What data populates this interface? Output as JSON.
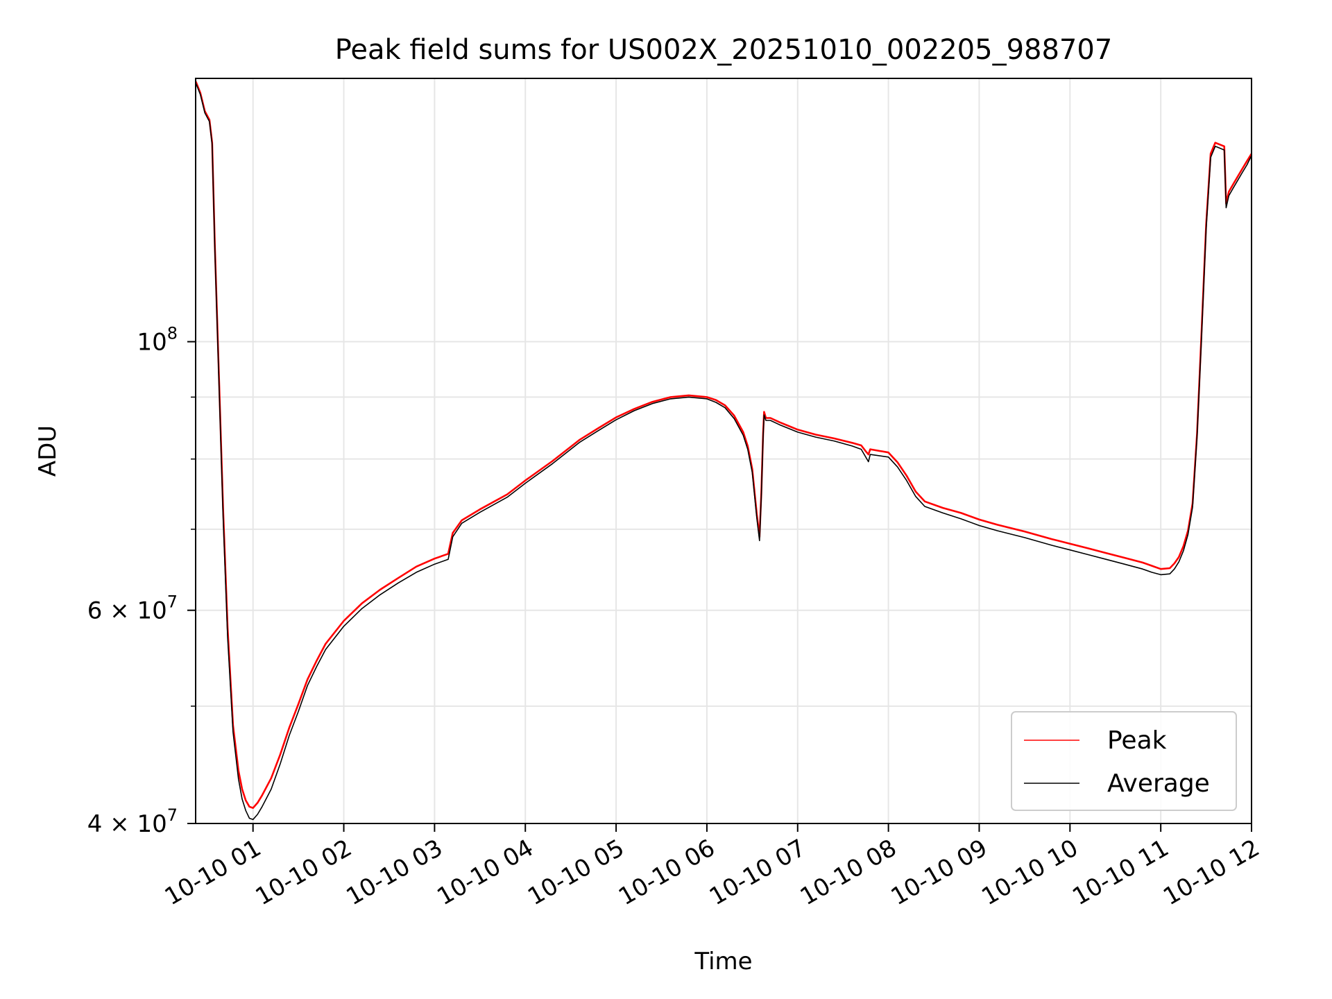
{
  "chart_data": {
    "type": "line",
    "title": "Peak field sums for US002X_20251010_002205_988707",
    "xlabel": "Time",
    "ylabel": "ADU",
    "yscale": "log",
    "xlim_hours": [
      0.368,
      12.0
    ],
    "ylim": [
      40000000,
      165000000
    ],
    "grid": true,
    "legend_location": "lower right",
    "x_ticks": [
      {
        "hour": 1,
        "label": "10-10 01"
      },
      {
        "hour": 2,
        "label": "10-10 02"
      },
      {
        "hour": 3,
        "label": "10-10 03"
      },
      {
        "hour": 4,
        "label": "10-10 04"
      },
      {
        "hour": 5,
        "label": "10-10 05"
      },
      {
        "hour": 6,
        "label": "10-10 06"
      },
      {
        "hour": 7,
        "label": "10-10 07"
      },
      {
        "hour": 8,
        "label": "10-10 08"
      },
      {
        "hour": 9,
        "label": "10-10 09"
      },
      {
        "hour": 10,
        "label": "10-10 10"
      },
      {
        "hour": 11,
        "label": "10-10 11"
      },
      {
        "hour": 12,
        "label": "10-10 12"
      }
    ],
    "y_major_ticks": [
      {
        "value": 40000000,
        "base": "4 × 10",
        "exp": "7"
      },
      {
        "value": 60000000,
        "base": "6 × 10",
        "exp": "7"
      },
      {
        "value": 100000000,
        "base": "10",
        "exp": "8"
      }
    ],
    "y_minor_ticks": [
      50000000,
      70000000,
      80000000,
      90000000
    ],
    "series": [
      {
        "name": "Peak",
        "color": "#ff0000",
        "x_hours": [
          0.37,
          0.42,
          0.47,
          0.52,
          0.55,
          0.58,
          0.62,
          0.67,
          0.72,
          0.78,
          0.84,
          0.88,
          0.92,
          0.96,
          1.0,
          1.05,
          1.1,
          1.2,
          1.3,
          1.4,
          1.5,
          1.6,
          1.7,
          1.8,
          2.0,
          2.2,
          2.4,
          2.6,
          2.8,
          3.0,
          3.15,
          3.2,
          3.3,
          3.5,
          3.8,
          4.0,
          4.3,
          4.6,
          4.8,
          5.0,
          5.2,
          5.4,
          5.6,
          5.8,
          6.0,
          6.1,
          6.2,
          6.3,
          6.4,
          6.45,
          6.5,
          6.55,
          6.58,
          6.6,
          6.62,
          6.63,
          6.65,
          6.7,
          6.8,
          7.0,
          7.2,
          7.4,
          7.6,
          7.7,
          7.75,
          7.78,
          7.8,
          8.0,
          8.1,
          8.2,
          8.3,
          8.4,
          8.6,
          8.8,
          9.0,
          9.2,
          9.5,
          9.8,
          10.0,
          10.2,
          10.4,
          10.6,
          10.8,
          10.9,
          11.0,
          11.1,
          11.15,
          11.2,
          11.25,
          11.3,
          11.35,
          11.4,
          11.45,
          11.5,
          11.55,
          11.6,
          11.65,
          11.7,
          11.72,
          11.75,
          11.8,
          11.9,
          11.95,
          12.0
        ],
        "values": [
          164000000,
          160500000,
          155000000,
          152500000,
          146000000,
          120000000,
          96000000,
          73000000,
          58000000,
          48200000,
          44200000,
          42700000,
          41800000,
          41300000,
          41200000,
          41600000,
          42200000,
          43600000,
          45600000,
          48000000,
          50200000,
          52600000,
          54500000,
          56300000,
          58800000,
          60800000,
          62400000,
          63800000,
          65200000,
          66200000,
          66800000,
          69500000,
          71200000,
          72700000,
          74800000,
          76800000,
          79700000,
          83000000,
          84800000,
          86600000,
          88000000,
          89200000,
          90000000,
          90300000,
          90000000,
          89500000,
          88600000,
          86900000,
          84200000,
          82000000,
          78500000,
          72000000,
          69000000,
          75000000,
          84000000,
          87500000,
          86500000,
          86500000,
          85800000,
          84600000,
          83800000,
          83200000,
          82500000,
          82100000,
          81200000,
          80700000,
          81500000,
          81000000,
          79500000,
          77500000,
          75200000,
          73800000,
          72900000,
          72200000,
          71300000,
          70600000,
          69700000,
          68700000,
          68100000,
          67500000,
          66900000,
          66300000,
          65700000,
          65300000,
          64900000,
          65000000,
          65600000,
          66400000,
          67800000,
          69800000,
          73500000,
          84000000,
          102000000,
          125000000,
          143000000,
          146000000,
          145500000,
          145000000,
          130000000,
          133000000,
          135000000,
          139000000,
          141000000,
          143000000
        ]
      },
      {
        "name": "Average",
        "color": "#000000",
        "x_hours": [
          0.37,
          0.42,
          0.47,
          0.52,
          0.55,
          0.58,
          0.62,
          0.67,
          0.72,
          0.78,
          0.84,
          0.88,
          0.92,
          0.96,
          1.0,
          1.05,
          1.1,
          1.2,
          1.3,
          1.4,
          1.5,
          1.6,
          1.7,
          1.8,
          2.0,
          2.2,
          2.4,
          2.6,
          2.8,
          3.0,
          3.15,
          3.2,
          3.3,
          3.5,
          3.8,
          4.0,
          4.3,
          4.6,
          4.8,
          5.0,
          5.2,
          5.4,
          5.6,
          5.8,
          6.0,
          6.1,
          6.2,
          6.3,
          6.4,
          6.45,
          6.5,
          6.55,
          6.58,
          6.6,
          6.62,
          6.63,
          6.65,
          6.7,
          6.8,
          7.0,
          7.2,
          7.4,
          7.6,
          7.7,
          7.75,
          7.78,
          7.8,
          8.0,
          8.1,
          8.2,
          8.3,
          8.4,
          8.6,
          8.8,
          9.0,
          9.2,
          9.5,
          9.8,
          10.0,
          10.2,
          10.4,
          10.6,
          10.8,
          10.9,
          11.0,
          11.1,
          11.15,
          11.2,
          11.25,
          11.3,
          11.35,
          11.4,
          11.45,
          11.5,
          11.55,
          11.6,
          11.65,
          11.7,
          11.72,
          11.75,
          11.8,
          11.9,
          11.95,
          12.0
        ],
        "values": [
          163500000,
          160000000,
          154500000,
          152000000,
          145500000,
          119000000,
          95000000,
          72000000,
          57000000,
          47600000,
          43500000,
          41900000,
          41000000,
          40400000,
          40300000,
          40700000,
          41300000,
          42700000,
          44800000,
          47300000,
          49500000,
          52000000,
          53900000,
          55700000,
          58200000,
          60200000,
          61800000,
          63200000,
          64500000,
          65500000,
          66100000,
          69000000,
          70800000,
          72300000,
          74400000,
          76400000,
          79300000,
          82600000,
          84400000,
          86200000,
          87700000,
          88900000,
          89700000,
          90000000,
          89700000,
          89100000,
          88200000,
          86400000,
          83700000,
          81500000,
          78000000,
          71500000,
          68500000,
          74500000,
          83500000,
          87000000,
          86100000,
          86100000,
          85400000,
          84200000,
          83400000,
          82800000,
          82000000,
          81500000,
          80300000,
          79600000,
          80700000,
          80300000,
          78800000,
          76800000,
          74500000,
          73100000,
          72200000,
          71400000,
          70500000,
          69800000,
          68900000,
          67900000,
          67300000,
          66700000,
          66100000,
          65500000,
          64900000,
          64500000,
          64200000,
          64300000,
          64900000,
          65800000,
          67200000,
          69300000,
          73000000,
          83500000,
          101000000,
          124000000,
          142000000,
          145000000,
          144500000,
          144000000,
          129000000,
          132000000,
          134000000,
          138000000,
          140000000,
          142500000
        ]
      }
    ]
  }
}
